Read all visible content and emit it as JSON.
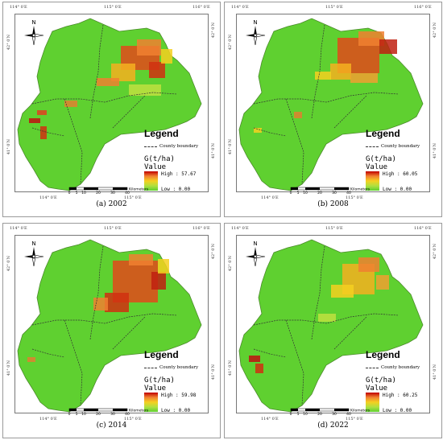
{
  "coords": {
    "top": [
      "114° 0′E",
      "115° 0′E",
      "116° 0′E"
    ],
    "bottom": [
      "114° 0′E",
      "115° 0′E"
    ],
    "left": [
      "42° 0′N",
      "41° 0′N"
    ],
    "right": [
      "42° 0′N",
      "41° 0′N"
    ]
  },
  "legend": {
    "title": "Legend",
    "boundary": "County boundary",
    "unit": "G(t/ha)",
    "value_label": "Value",
    "low": "Low : 0.00"
  },
  "scale": {
    "ticks": [
      "0",
      "5",
      "10",
      "20",
      "30",
      "40"
    ],
    "unit": "Kilometers"
  },
  "north_label": "N",
  "colors": {
    "low": "#5fd030",
    "mid": "#f5d020",
    "high": "#c00000",
    "boundary": "#333333"
  },
  "panels": [
    {
      "caption": "(a) 2002",
      "high": "High : 57.67"
    },
    {
      "caption": "(b) 2008",
      "high": "High : 60.05"
    },
    {
      "caption": "(c) 2014",
      "high": "High : 59.98"
    },
    {
      "caption": "(d) 2022",
      "high": "High : 60.25"
    }
  ]
}
